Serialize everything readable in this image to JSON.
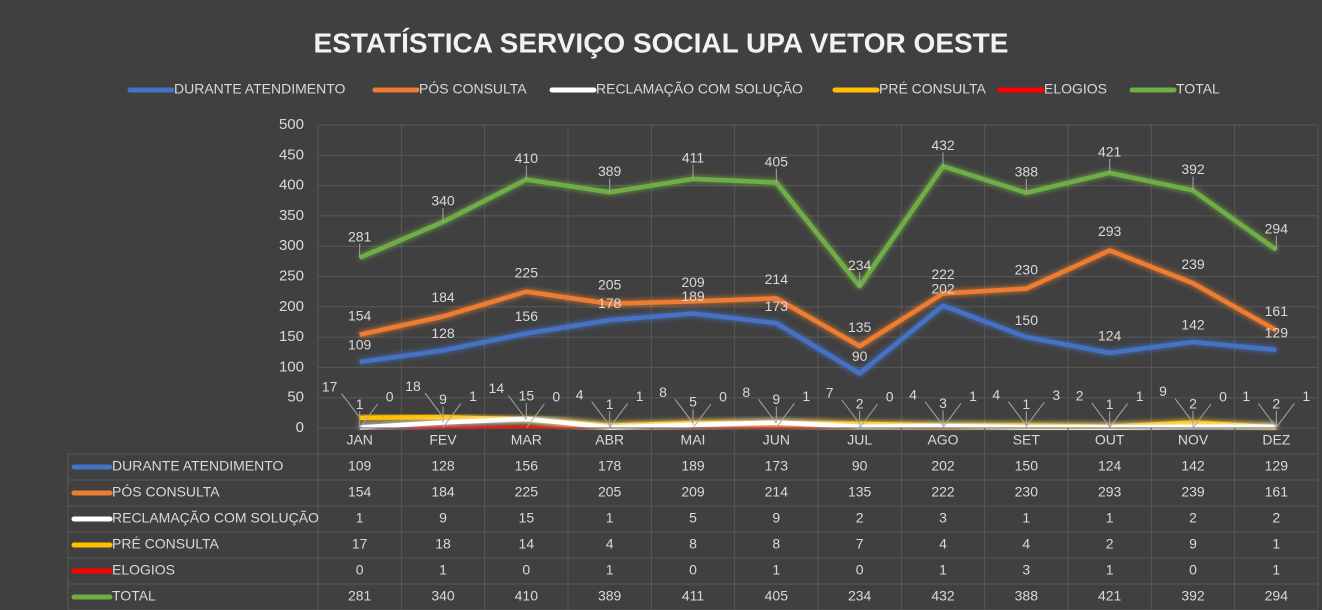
{
  "chart_data": {
    "type": "line",
    "title": "ESTATÍSTICA SERVIÇO SOCIAL UPA VETOR OESTE",
    "categories": [
      "JAN",
      "FEV",
      "MAR",
      "ABR",
      "MAI",
      "JUN",
      "JUL",
      "AGO",
      "SET",
      "OUT",
      "NOV",
      "DEZ"
    ],
    "series": [
      {
        "name": "DURANTE ATENDIMENTO",
        "color": "#4472c4",
        "values": [
          109,
          128,
          156,
          178,
          189,
          173,
          90,
          202,
          150,
          124,
          142,
          129
        ]
      },
      {
        "name": "PÓS CONSULTA",
        "color": "#ed7d31",
        "values": [
          154,
          184,
          225,
          205,
          209,
          214,
          135,
          222,
          230,
          293,
          239,
          161
        ]
      },
      {
        "name": "RECLAMAÇÃO COM SOLUÇÃO",
        "color": "#ffffff",
        "values": [
          1,
          9,
          15,
          1,
          5,
          9,
          2,
          3,
          1,
          1,
          2,
          2
        ]
      },
      {
        "name": "PRÉ CONSULTA",
        "color": "#ffc000",
        "values": [
          17,
          18,
          14,
          4,
          8,
          8,
          7,
          4,
          4,
          2,
          9,
          1
        ]
      },
      {
        "name": "ELOGIOS",
        "color": "#ff0000",
        "values": [
          0,
          1,
          0,
          1,
          0,
          1,
          0,
          1,
          3,
          1,
          0,
          1
        ]
      },
      {
        "name": "TOTAL",
        "color": "#70ad47",
        "values": [
          281,
          340,
          410,
          389,
          411,
          405,
          234,
          432,
          388,
          421,
          392,
          294
        ]
      }
    ],
    "ylim": [
      0,
      500
    ],
    "yticks": [
      0,
      50,
      100,
      150,
      200,
      250,
      300,
      350,
      400,
      450,
      500
    ],
    "grid": true
  }
}
